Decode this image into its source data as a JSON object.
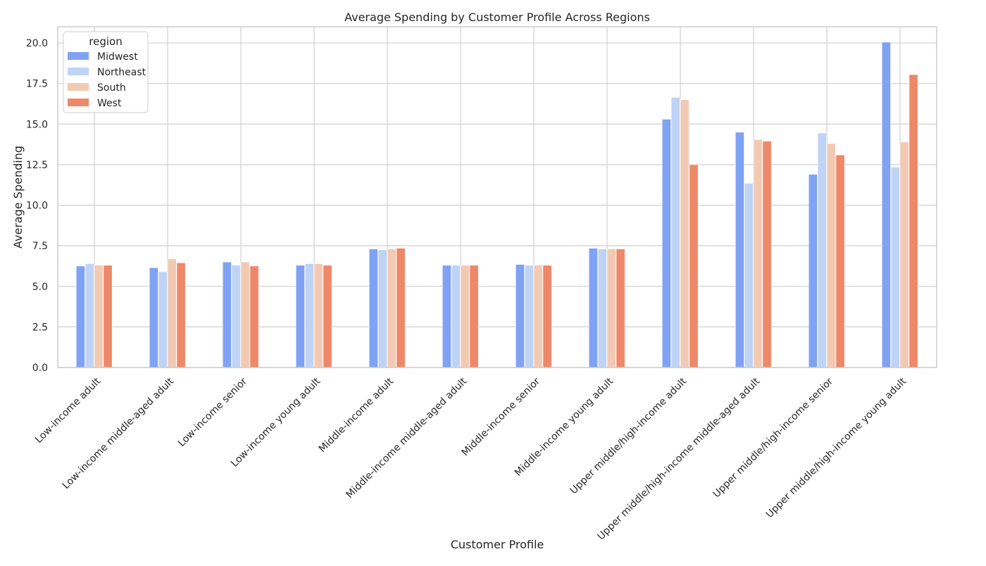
{
  "chart_data": {
    "type": "bar",
    "title": "Average Spending by Customer Profile Across Regions",
    "xlabel": "Customer Profile",
    "ylabel": "Average Spending",
    "ylim": [
      0,
      21
    ],
    "yticks": [
      "0.0",
      "2.5",
      "5.0",
      "7.5",
      "10.0",
      "12.5",
      "15.0",
      "17.5",
      "20.0"
    ],
    "grid": true,
    "legend": {
      "title": "region",
      "placement": "top-left"
    },
    "categories": [
      "Low-income adult",
      "Low-income middle-aged adult",
      "Low-income senior",
      "Low-income young adult",
      "Middle-income adult",
      "Middle-income middle-aged adult",
      "Middle-income senior",
      "Middle-income young adult",
      "Upper middle/high-income adult",
      "Upper middle/high-income middle-aged adult",
      "Upper middle/high-income senior",
      "Upper middle/high-income young adult"
    ],
    "series": [
      {
        "name": "Midwest",
        "color": "#7FA2F5",
        "values": [
          6.25,
          6.15,
          6.5,
          6.3,
          7.3,
          6.3,
          6.35,
          7.35,
          15.3,
          14.5,
          11.9,
          20.05
        ]
      },
      {
        "name": "Northeast",
        "color": "#BFD3F5",
        "values": [
          6.4,
          5.9,
          6.3,
          6.4,
          7.25,
          6.3,
          6.3,
          7.3,
          16.65,
          11.35,
          14.45,
          12.35
        ]
      },
      {
        "name": "South",
        "color": "#F2CAB4",
        "values": [
          6.3,
          6.7,
          6.5,
          6.4,
          7.3,
          6.3,
          6.3,
          7.3,
          16.5,
          14.05,
          13.8,
          13.9
        ]
      },
      {
        "name": "West",
        "color": "#EE8869",
        "values": [
          6.3,
          6.45,
          6.25,
          6.3,
          7.35,
          6.3,
          6.3,
          7.3,
          12.5,
          13.95,
          13.1,
          18.05
        ]
      }
    ]
  }
}
